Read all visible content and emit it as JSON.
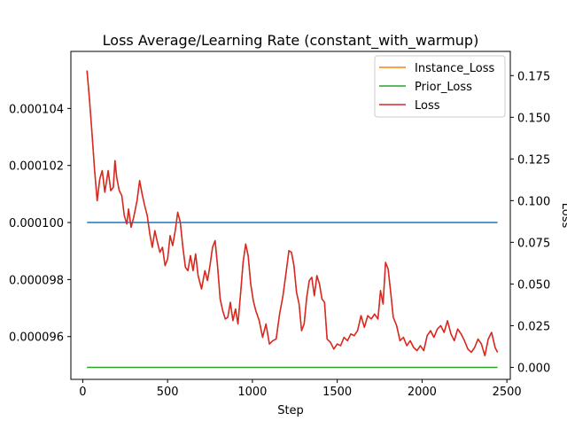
{
  "chart_data": {
    "type": "line",
    "title": "Loss Average/Learning Rate (constant_with_warmup)",
    "xlabel": "Step",
    "ylabel_left": "",
    "ylabel_right": "Loss",
    "xlim": [
      -70,
      2520
    ],
    "ylim_left": [
      9.45e-05,
      0.000106
    ],
    "ylim_right": [
      -0.0072,
      0.1895
    ],
    "x_ticks": [
      0,
      500,
      1000,
      1500,
      2000,
      2500
    ],
    "x_tick_labels": [
      "0",
      "500",
      "1000",
      "1500",
      "2000",
      "2500"
    ],
    "y_left_ticks": [
      9.6e-05,
      9.8e-05,
      0.0001,
      0.000102,
      0.000104
    ],
    "y_left_tick_labels": [
      "0.000096",
      "0.000098",
      "0.000100",
      "0.000102",
      "0.000104"
    ],
    "y_right_ticks": [
      0.0,
      0.025,
      0.05,
      0.075,
      0.1,
      0.125,
      0.15,
      0.175
    ],
    "y_right_tick_labels": [
      "0.000",
      "0.025",
      "0.050",
      "0.075",
      "0.100",
      "0.125",
      "0.150",
      "0.175"
    ],
    "legend_position": "top-right",
    "grid": false,
    "series": [
      {
        "name": "Instance_Loss",
        "axis": "right",
        "color": "#ff7f0e",
        "points": [
          [
            25,
            0.178
          ],
          [
            40,
            0.16
          ],
          [
            55,
            0.14
          ],
          [
            70,
            0.118
          ],
          [
            85,
            0.1
          ],
          [
            100,
            0.113
          ],
          [
            115,
            0.118
          ],
          [
            130,
            0.105
          ],
          [
            150,
            0.118
          ],
          [
            165,
            0.106
          ],
          [
            180,
            0.108
          ],
          [
            190,
            0.124
          ],
          [
            200,
            0.114
          ],
          [
            215,
            0.106
          ],
          [
            230,
            0.103
          ],
          [
            245,
            0.091
          ],
          [
            260,
            0.086
          ],
          [
            270,
            0.095
          ],
          [
            285,
            0.084
          ],
          [
            300,
            0.09
          ],
          [
            320,
            0.1
          ],
          [
            335,
            0.112
          ],
          [
            350,
            0.104
          ],
          [
            365,
            0.097
          ],
          [
            380,
            0.091
          ],
          [
            395,
            0.08
          ],
          [
            410,
            0.072
          ],
          [
            425,
            0.082
          ],
          [
            440,
            0.075
          ],
          [
            455,
            0.069
          ],
          [
            470,
            0.072
          ],
          [
            485,
            0.061
          ],
          [
            500,
            0.065
          ],
          [
            515,
            0.079
          ],
          [
            530,
            0.073
          ],
          [
            545,
            0.082
          ],
          [
            560,
            0.093
          ],
          [
            575,
            0.087
          ],
          [
            590,
            0.072
          ],
          [
            605,
            0.06
          ],
          [
            620,
            0.058
          ],
          [
            635,
            0.067
          ],
          [
            650,
            0.058
          ],
          [
            665,
            0.068
          ],
          [
            680,
            0.055
          ],
          [
            700,
            0.047
          ],
          [
            720,
            0.058
          ],
          [
            735,
            0.052
          ],
          [
            750,
            0.061
          ],
          [
            765,
            0.072
          ],
          [
            780,
            0.076
          ],
          [
            795,
            0.06
          ],
          [
            810,
            0.041
          ],
          [
            825,
            0.034
          ],
          [
            840,
            0.029
          ],
          [
            855,
            0.03
          ],
          [
            870,
            0.039
          ],
          [
            885,
            0.028
          ],
          [
            900,
            0.035
          ],
          [
            915,
            0.026
          ],
          [
            930,
            0.044
          ],
          [
            945,
            0.063
          ],
          [
            960,
            0.074
          ],
          [
            975,
            0.067
          ],
          [
            990,
            0.05
          ],
          [
            1005,
            0.04
          ],
          [
            1020,
            0.034
          ],
          [
            1040,
            0.028
          ],
          [
            1060,
            0.018
          ],
          [
            1080,
            0.026
          ],
          [
            1100,
            0.014
          ],
          [
            1120,
            0.016
          ],
          [
            1140,
            0.017
          ],
          [
            1160,
            0.032
          ],
          [
            1180,
            0.043
          ],
          [
            1200,
            0.058
          ],
          [
            1215,
            0.07
          ],
          [
            1230,
            0.069
          ],
          [
            1245,
            0.061
          ],
          [
            1260,
            0.045
          ],
          [
            1275,
            0.038
          ],
          [
            1290,
            0.022
          ],
          [
            1305,
            0.026
          ],
          [
            1320,
            0.042
          ],
          [
            1335,
            0.052
          ],
          [
            1350,
            0.054
          ],
          [
            1365,
            0.043
          ],
          [
            1380,
            0.055
          ],
          [
            1395,
            0.05
          ],
          [
            1410,
            0.041
          ],
          [
            1425,
            0.039
          ],
          [
            1440,
            0.017
          ],
          [
            1460,
            0.015
          ],
          [
            1480,
            0.011
          ],
          [
            1500,
            0.014
          ],
          [
            1520,
            0.013
          ],
          [
            1540,
            0.018
          ],
          [
            1560,
            0.016
          ],
          [
            1580,
            0.02
          ],
          [
            1600,
            0.019
          ],
          [
            1620,
            0.022
          ],
          [
            1640,
            0.031
          ],
          [
            1660,
            0.024
          ],
          [
            1680,
            0.031
          ],
          [
            1700,
            0.029
          ],
          [
            1720,
            0.032
          ],
          [
            1740,
            0.029
          ],
          [
            1755,
            0.046
          ],
          [
            1770,
            0.038
          ],
          [
            1785,
            0.063
          ],
          [
            1800,
            0.059
          ],
          [
            1815,
            0.045
          ],
          [
            1830,
            0.03
          ],
          [
            1850,
            0.025
          ],
          [
            1870,
            0.016
          ],
          [
            1890,
            0.018
          ],
          [
            1910,
            0.013
          ],
          [
            1930,
            0.016
          ],
          [
            1950,
            0.012
          ],
          [
            1970,
            0.01
          ],
          [
            1990,
            0.013
          ],
          [
            2010,
            0.01
          ],
          [
            2030,
            0.019
          ],
          [
            2050,
            0.022
          ],
          [
            2070,
            0.018
          ],
          [
            2090,
            0.023
          ],
          [
            2110,
            0.025
          ],
          [
            2130,
            0.021
          ],
          [
            2150,
            0.028
          ],
          [
            2170,
            0.02
          ],
          [
            2190,
            0.016
          ],
          [
            2210,
            0.023
          ],
          [
            2230,
            0.02
          ],
          [
            2250,
            0.016
          ],
          [
            2270,
            0.011
          ],
          [
            2290,
            0.009
          ],
          [
            2310,
            0.012
          ],
          [
            2330,
            0.017
          ],
          [
            2350,
            0.014
          ],
          [
            2370,
            0.007
          ],
          [
            2390,
            0.017
          ],
          [
            2410,
            0.021
          ],
          [
            2430,
            0.012
          ],
          [
            2445,
            0.009
          ]
        ]
      },
      {
        "name": "Prior_Loss",
        "axis": "right",
        "color": "#2ca02c",
        "points": [
          [
            25,
            0.0
          ],
          [
            2445,
            0.0
          ]
        ]
      },
      {
        "name": "Loss",
        "axis": "right",
        "color": "#d62728",
        "points": [
          [
            25,
            0.178
          ],
          [
            40,
            0.16
          ],
          [
            55,
            0.14
          ],
          [
            70,
            0.118
          ],
          [
            85,
            0.1
          ],
          [
            100,
            0.113
          ],
          [
            115,
            0.118
          ],
          [
            130,
            0.105
          ],
          [
            150,
            0.118
          ],
          [
            165,
            0.106
          ],
          [
            180,
            0.108
          ],
          [
            190,
            0.124
          ],
          [
            200,
            0.114
          ],
          [
            215,
            0.106
          ],
          [
            230,
            0.103
          ],
          [
            245,
            0.091
          ],
          [
            260,
            0.086
          ],
          [
            270,
            0.095
          ],
          [
            285,
            0.084
          ],
          [
            300,
            0.09
          ],
          [
            320,
            0.1
          ],
          [
            335,
            0.112
          ],
          [
            350,
            0.104
          ],
          [
            365,
            0.097
          ],
          [
            380,
            0.091
          ],
          [
            395,
            0.08
          ],
          [
            410,
            0.072
          ],
          [
            425,
            0.082
          ],
          [
            440,
            0.075
          ],
          [
            455,
            0.069
          ],
          [
            470,
            0.072
          ],
          [
            485,
            0.061
          ],
          [
            500,
            0.065
          ],
          [
            515,
            0.079
          ],
          [
            530,
            0.073
          ],
          [
            545,
            0.082
          ],
          [
            560,
            0.093
          ],
          [
            575,
            0.087
          ],
          [
            590,
            0.072
          ],
          [
            605,
            0.06
          ],
          [
            620,
            0.058
          ],
          [
            635,
            0.067
          ],
          [
            650,
            0.058
          ],
          [
            665,
            0.068
          ],
          [
            680,
            0.055
          ],
          [
            700,
            0.047
          ],
          [
            720,
            0.058
          ],
          [
            735,
            0.052
          ],
          [
            750,
            0.061
          ],
          [
            765,
            0.072
          ],
          [
            780,
            0.076
          ],
          [
            795,
            0.06
          ],
          [
            810,
            0.041
          ],
          [
            825,
            0.034
          ],
          [
            840,
            0.029
          ],
          [
            855,
            0.03
          ],
          [
            870,
            0.039
          ],
          [
            885,
            0.028
          ],
          [
            900,
            0.035
          ],
          [
            915,
            0.026
          ],
          [
            930,
            0.044
          ],
          [
            945,
            0.063
          ],
          [
            960,
            0.074
          ],
          [
            975,
            0.067
          ],
          [
            990,
            0.05
          ],
          [
            1005,
            0.04
          ],
          [
            1020,
            0.034
          ],
          [
            1040,
            0.028
          ],
          [
            1060,
            0.018
          ],
          [
            1080,
            0.026
          ],
          [
            1100,
            0.014
          ],
          [
            1120,
            0.016
          ],
          [
            1140,
            0.017
          ],
          [
            1160,
            0.032
          ],
          [
            1180,
            0.043
          ],
          [
            1200,
            0.058
          ],
          [
            1215,
            0.07
          ],
          [
            1230,
            0.069
          ],
          [
            1245,
            0.061
          ],
          [
            1260,
            0.045
          ],
          [
            1275,
            0.038
          ],
          [
            1290,
            0.022
          ],
          [
            1305,
            0.026
          ],
          [
            1320,
            0.042
          ],
          [
            1335,
            0.052
          ],
          [
            1350,
            0.054
          ],
          [
            1365,
            0.043
          ],
          [
            1380,
            0.055
          ],
          [
            1395,
            0.05
          ],
          [
            1410,
            0.041
          ],
          [
            1425,
            0.039
          ],
          [
            1440,
            0.017
          ],
          [
            1460,
            0.015
          ],
          [
            1480,
            0.011
          ],
          [
            1500,
            0.014
          ],
          [
            1520,
            0.013
          ],
          [
            1540,
            0.018
          ],
          [
            1560,
            0.016
          ],
          [
            1580,
            0.02
          ],
          [
            1600,
            0.019
          ],
          [
            1620,
            0.022
          ],
          [
            1640,
            0.031
          ],
          [
            1660,
            0.024
          ],
          [
            1680,
            0.031
          ],
          [
            1700,
            0.029
          ],
          [
            1720,
            0.032
          ],
          [
            1740,
            0.029
          ],
          [
            1755,
            0.046
          ],
          [
            1770,
            0.038
          ],
          [
            1785,
            0.063
          ],
          [
            1800,
            0.059
          ],
          [
            1815,
            0.045
          ],
          [
            1830,
            0.03
          ],
          [
            1850,
            0.025
          ],
          [
            1870,
            0.016
          ],
          [
            1890,
            0.018
          ],
          [
            1910,
            0.013
          ],
          [
            1930,
            0.016
          ],
          [
            1950,
            0.012
          ],
          [
            1970,
            0.01
          ],
          [
            1990,
            0.013
          ],
          [
            2010,
            0.01
          ],
          [
            2030,
            0.019
          ],
          [
            2050,
            0.022
          ],
          [
            2070,
            0.018
          ],
          [
            2090,
            0.023
          ],
          [
            2110,
            0.025
          ],
          [
            2130,
            0.021
          ],
          [
            2150,
            0.028
          ],
          [
            2170,
            0.02
          ],
          [
            2190,
            0.016
          ],
          [
            2210,
            0.023
          ],
          [
            2230,
            0.02
          ],
          [
            2250,
            0.016
          ],
          [
            2270,
            0.011
          ],
          [
            2290,
            0.009
          ],
          [
            2310,
            0.012
          ],
          [
            2330,
            0.017
          ],
          [
            2350,
            0.014
          ],
          [
            2370,
            0.007
          ],
          [
            2390,
            0.017
          ],
          [
            2410,
            0.021
          ],
          [
            2430,
            0.012
          ],
          [
            2445,
            0.009
          ]
        ]
      },
      {
        "name": "",
        "axis": "left",
        "color": "#1f77b4",
        "points": [
          [
            25,
            0.0001
          ],
          [
            2445,
            0.0001
          ]
        ]
      }
    ]
  }
}
